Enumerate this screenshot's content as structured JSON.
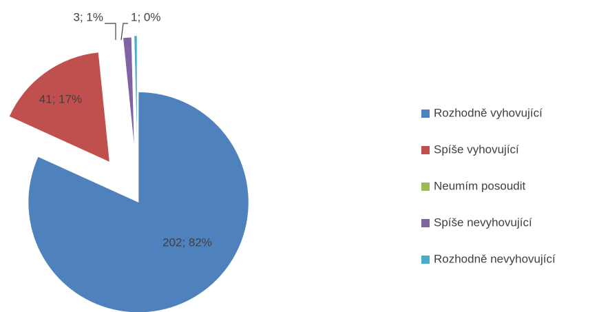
{
  "chart_data": {
    "type": "pie",
    "categories": [
      "Rozhodně vyhovující",
      "Spíše vyhovující",
      "Neumím posoudit",
      "Spíše nevyhovující",
      "Rozhodně nevyhovující"
    ],
    "values": [
      202,
      41,
      0,
      3,
      1
    ],
    "value_labels": [
      "202; 82%",
      "41; 17%",
      null,
      "3; 1%",
      "1; 0%"
    ],
    "colors": [
      "#4f81bd",
      "#c0504d",
      "#9bbb59",
      "#8064a2",
      "#4bacc6"
    ],
    "legend": "right"
  }
}
